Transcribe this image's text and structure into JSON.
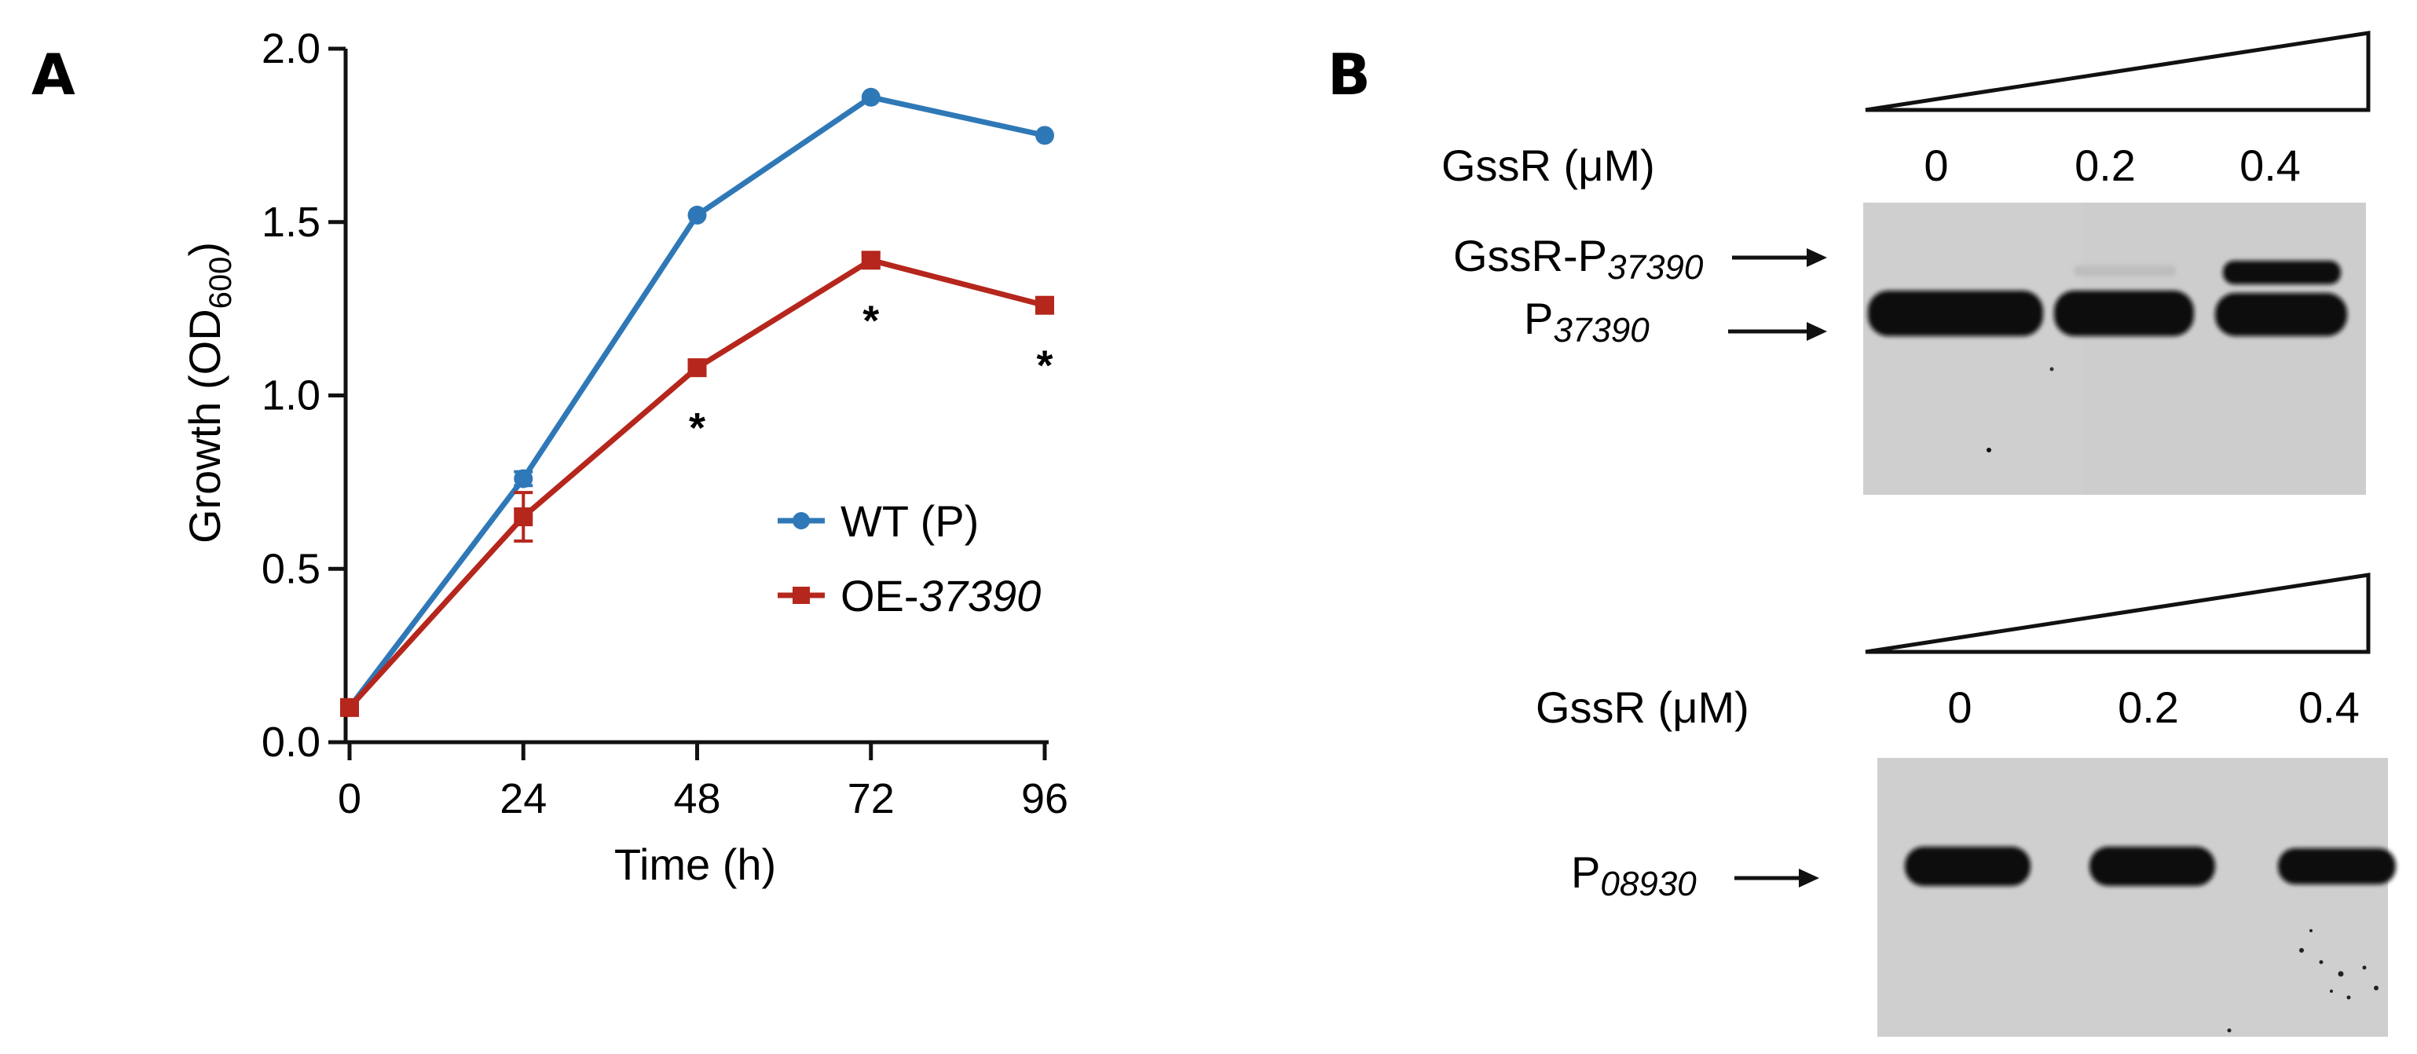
{
  "panel_a_letter": "A",
  "panel_b_letter": "B",
  "chart_data": {
    "type": "line",
    "title": "",
    "xlabel": "Time (h)",
    "ylabel_main": "Growth (OD",
    "ylabel_sub": "600",
    "ylabel_end": ")",
    "x": [
      0,
      24,
      48,
      72,
      96
    ],
    "x_ticks": [
      "0",
      "24",
      "48",
      "72",
      "96"
    ],
    "y_ticks": [
      "0.0",
      "0.5",
      "1.0",
      "1.5",
      "2.0"
    ],
    "xlim": [
      0,
      96
    ],
    "ylim": [
      0,
      2.0
    ],
    "series": [
      {
        "name": "WT (P)",
        "color": "#2f78b7",
        "marker": "circle",
        "values": [
          0.1,
          0.76,
          1.52,
          1.86,
          1.75
        ],
        "errors": [
          0.01,
          0.02,
          0.01,
          0.01,
          0.01
        ]
      },
      {
        "name": "OE-37390",
        "name_prefix": "OE-",
        "name_italic": "37390",
        "color": "#b5261c",
        "marker": "square",
        "values": [
          0.1,
          0.65,
          1.08,
          1.39,
          1.26
        ],
        "errors": [
          0.01,
          0.07,
          0.02,
          0.02,
          0.02
        ]
      }
    ],
    "significance": [
      {
        "x": 48,
        "label": "*"
      },
      {
        "x": 72,
        "label": "*"
      },
      {
        "x": 96,
        "label": "*"
      }
    ],
    "legend_position": "right-middle"
  },
  "blot_top": {
    "conc_label": "GssR (μM)",
    "concentrations": [
      "0",
      "0.2",
      "0.4"
    ],
    "complex_label_prefix": "GssR-P",
    "complex_label_sub": "37390",
    "probe_label_prefix": "P",
    "probe_label_sub": "37390"
  },
  "blot_bottom": {
    "conc_label": "GssR (μM)",
    "concentrations": [
      "0",
      "0.2",
      "0.4"
    ],
    "probe_label_prefix": "P",
    "probe_label_sub": "08930"
  },
  "colors": {
    "gel_background": "#cfcfcf",
    "band": "#0d0d0d"
  }
}
